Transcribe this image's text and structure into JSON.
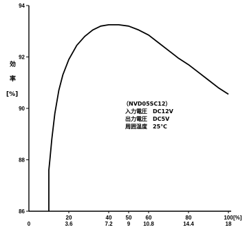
{
  "chart_data": {
    "type": "line",
    "x_top_ticks": [
      "20",
      "40",
      "50",
      "60",
      "80",
      "100"
    ],
    "x_bottom_ticks": [
      "3.6",
      "7.2",
      "9",
      "10.8",
      "14.4",
      "18"
    ],
    "x_origin_label": "0",
    "x_unit": "[%]",
    "y_ticks": [
      "86",
      "88",
      "90",
      "92",
      "94"
    ],
    "ylabel": [
      "効",
      "率",
      "[%]"
    ],
    "xlim": [
      0,
      100
    ],
    "ylim": [
      86,
      94
    ],
    "annotation": [
      "（NVD05SC12）",
      "入力電圧　DC12V",
      "出力電圧　DC5V",
      "周囲温度　25℃"
    ],
    "series": [
      {
        "x": [
          10,
          10,
          10.5,
          11.5,
          13,
          15,
          17,
          20,
          24,
          28,
          32,
          36,
          40,
          45,
          50,
          55,
          60,
          65,
          70,
          75,
          80,
          85,
          90,
          95,
          100
        ],
        "y": [
          86.0,
          87.6,
          88.0,
          88.8,
          89.8,
          90.7,
          91.3,
          91.9,
          92.45,
          92.8,
          93.05,
          93.2,
          93.25,
          93.25,
          93.2,
          93.05,
          92.85,
          92.55,
          92.25,
          91.95,
          91.7,
          91.4,
          91.1,
          90.8,
          90.55
        ]
      }
    ],
    "grid": false
  }
}
